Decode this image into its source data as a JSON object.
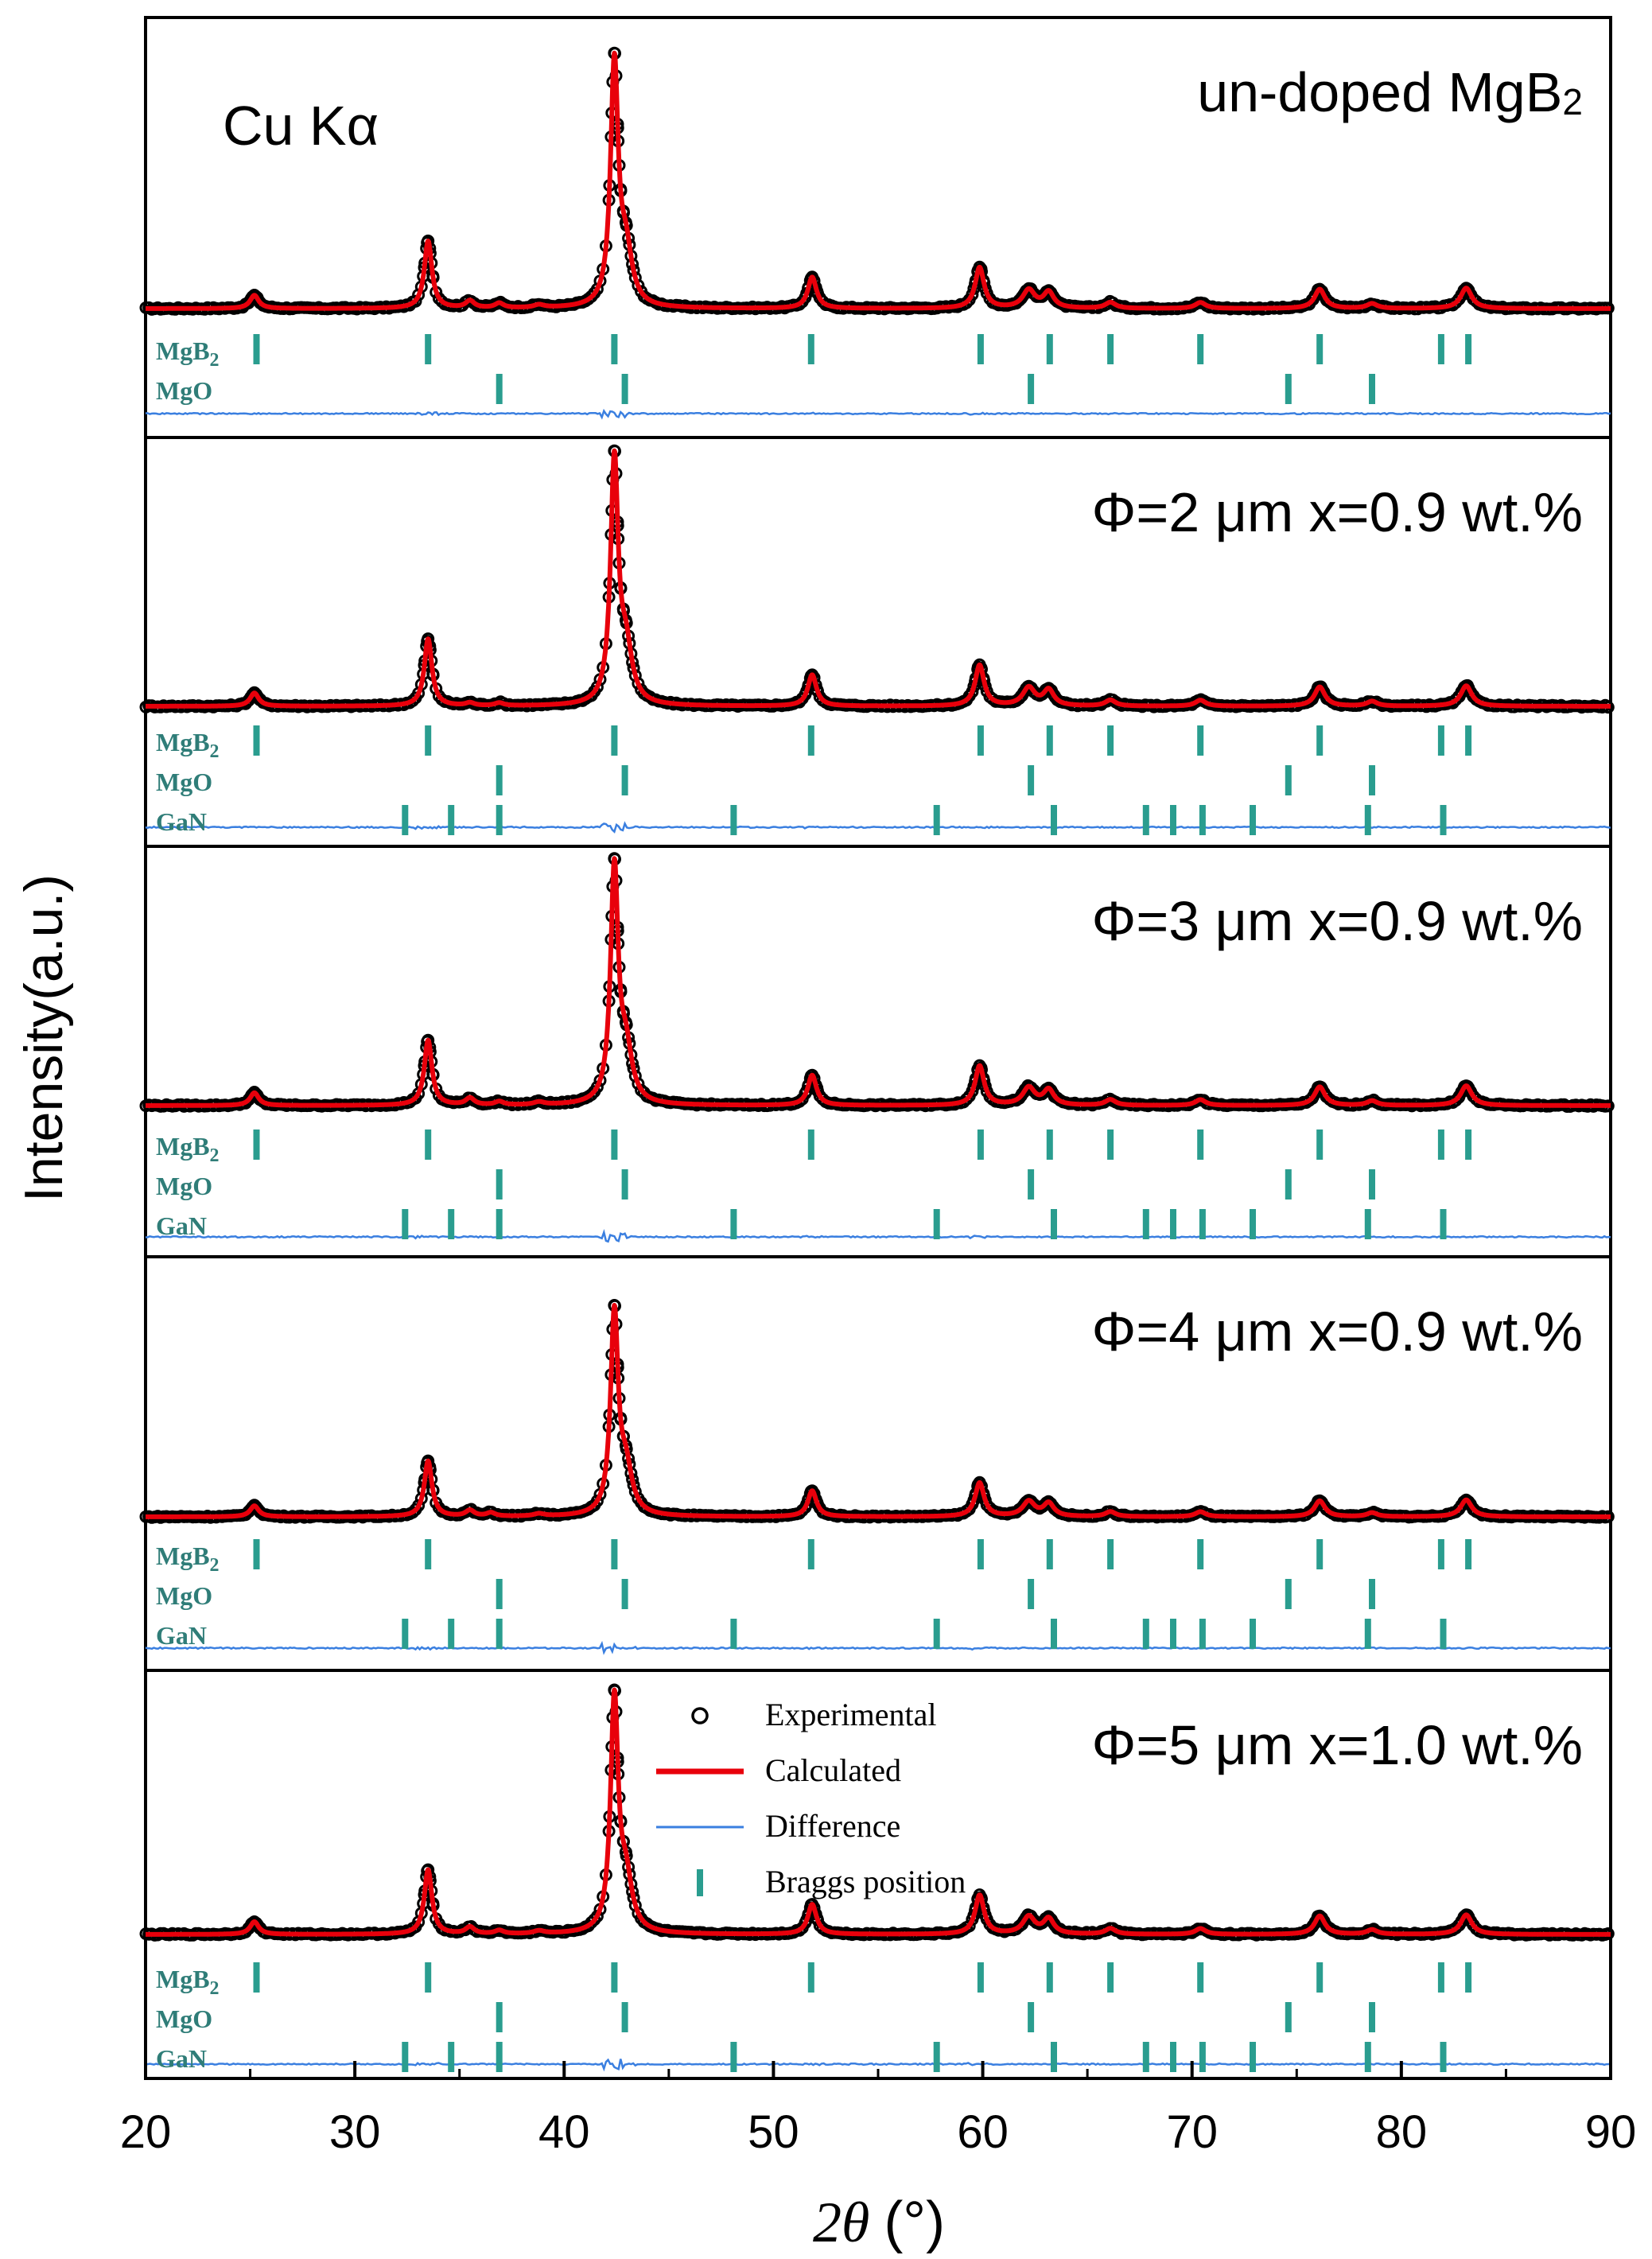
{
  "chart_data": {
    "type": "line",
    "xlabel_symbol": "2θ",
    "xlabel_unit": "(°)",
    "ylabel": "Intensity(a.u.)",
    "xlim": [
      20,
      90
    ],
    "xticks": [
      "20",
      "30",
      "40",
      "50",
      "60",
      "70",
      "80",
      "90"
    ],
    "radiation_label": "Cu Kα",
    "legend": {
      "placement": "inside-bottom-panel",
      "entries": [
        "Experimental",
        "Calculated",
        "Difference",
        "Braggs position"
      ]
    },
    "colors": {
      "experimental": "#000000",
      "calculated": "#e8000b",
      "difference": "#3a7fe0",
      "bragg": "#2a9d8f",
      "phase_label": "#2f7d78"
    },
    "peaks_common": [
      {
        "x": 25.2,
        "h": 5.5,
        "w": 0.25
      },
      {
        "x": 33.5,
        "h": 28,
        "w": 0.22
      },
      {
        "x": 42.4,
        "h": 100,
        "w": 0.22
      },
      {
        "x": 42.95,
        "h": 22,
        "w": 0.35
      },
      {
        "x": 51.85,
        "h": 13,
        "w": 0.25
      },
      {
        "x": 59.85,
        "h": 17,
        "w": 0.26
      },
      {
        "x": 62.2,
        "h": 7.5,
        "w": 0.35
      },
      {
        "x": 63.15,
        "h": 6.5,
        "w": 0.3
      },
      {
        "x": 66.1,
        "h": 2.5,
        "w": 0.3
      },
      {
        "x": 70.4,
        "h": 2.5,
        "w": 0.3
      },
      {
        "x": 76.1,
        "h": 8,
        "w": 0.3
      },
      {
        "x": 78.6,
        "h": 2,
        "w": 0.3
      },
      {
        "x": 83.1,
        "h": 8.5,
        "w": 0.32
      }
    ],
    "panels": [
      {
        "title_main": "un-doped MgB",
        "title_sub": "2",
        "extra_peaks": [
          {
            "x": 35.5,
            "h": 3,
            "w": 0.25
          },
          {
            "x": 36.9,
            "h": 2,
            "w": 0.25
          },
          {
            "x": 38.8,
            "h": 1.2,
            "w": 0.3
          }
        ],
        "phases": [
          {
            "name": "MgB",
            "sub": "2",
            "positions": [
              25.3,
              33.5,
              42.4,
              51.8,
              59.9,
              63.2,
              66.1,
              70.4,
              76.1,
              81.9,
              83.2
            ]
          },
          {
            "name": "MgO",
            "sub": "",
            "positions": [
              36.9,
              42.9,
              62.3,
              74.6,
              78.6
            ]
          }
        ]
      },
      {
        "title_main": "Φ=2 μm  x=0.9 wt.%",
        "title_sub": "",
        "extra_peaks": [
          {
            "x": 35.5,
            "h": 1.2,
            "w": 0.25
          },
          {
            "x": 36.9,
            "h": 1.2,
            "w": 0.25
          }
        ],
        "phases": [
          {
            "name": "MgB",
            "sub": "2",
            "positions": [
              25.3,
              33.5,
              42.4,
              51.8,
              59.9,
              63.2,
              66.1,
              70.4,
              76.1,
              81.9,
              83.2
            ]
          },
          {
            "name": "MgO",
            "sub": "",
            "positions": [
              36.9,
              42.9,
              62.3,
              74.6,
              78.6
            ]
          },
          {
            "name": "GaN",
            "sub": "",
            "positions": [
              32.4,
              34.6,
              36.9,
              48.1,
              57.8,
              63.4,
              67.8,
              69.1,
              70.5,
              72.9,
              78.4,
              82.0
            ]
          }
        ]
      },
      {
        "title_main": "Φ=3 μm  x=0.9 wt.%",
        "title_sub": "",
        "extra_peaks": [
          {
            "x": 35.5,
            "h": 3,
            "w": 0.25
          },
          {
            "x": 36.9,
            "h": 1.5,
            "w": 0.25
          },
          {
            "x": 38.8,
            "h": 1.2,
            "w": 0.3
          }
        ],
        "phases": [
          {
            "name": "MgB",
            "sub": "2",
            "positions": [
              25.3,
              33.5,
              42.4,
              51.8,
              59.9,
              63.2,
              66.1,
              70.4,
              76.1,
              81.9,
              83.2
            ]
          },
          {
            "name": "MgO",
            "sub": "",
            "positions": [
              36.9,
              42.9,
              62.3,
              74.6,
              78.6
            ]
          },
          {
            "name": "GaN",
            "sub": "",
            "positions": [
              32.4,
              34.6,
              36.9,
              48.1,
              57.8,
              63.4,
              67.8,
              69.1,
              70.5,
              72.9,
              78.4,
              82.0
            ]
          }
        ]
      },
      {
        "title_main": "Φ=4 μm  x=0.9 wt.%",
        "title_sub": "",
        "extra_peaks": [
          {
            "x": 35.5,
            "h": 3,
            "w": 0.25
          },
          {
            "x": 36.5,
            "h": 1.8,
            "w": 0.25
          },
          {
            "x": 38.8,
            "h": 1.2,
            "w": 0.3
          }
        ],
        "phases": [
          {
            "name": "MgB",
            "sub": "2",
            "positions": [
              25.3,
              33.5,
              42.4,
              51.8,
              59.9,
              63.2,
              66.1,
              70.4,
              76.1,
              81.9,
              83.2
            ]
          },
          {
            "name": "MgO",
            "sub": "",
            "positions": [
              36.9,
              42.9,
              62.3,
              74.6,
              78.6
            ]
          },
          {
            "name": "GaN",
            "sub": "",
            "positions": [
              32.4,
              34.6,
              36.9,
              48.1,
              57.8,
              63.4,
              67.8,
              69.1,
              70.5,
              72.9,
              78.4,
              82.0
            ]
          }
        ]
      },
      {
        "title_main": "Φ=5 μm  x=1.0 wt.%",
        "title_sub": "",
        "extra_peaks": [
          {
            "x": 35.5,
            "h": 3,
            "w": 0.25
          },
          {
            "x": 36.9,
            "h": 1.5,
            "w": 0.25
          },
          {
            "x": 38.8,
            "h": 1.2,
            "w": 0.3
          }
        ],
        "phases": [
          {
            "name": "MgB",
            "sub": "2",
            "positions": [
              25.3,
              33.5,
              42.4,
              51.8,
              59.9,
              63.2,
              66.1,
              70.4,
              76.1,
              81.9,
              83.2
            ]
          },
          {
            "name": "MgO",
            "sub": "",
            "positions": [
              36.9,
              42.9,
              62.3,
              74.6,
              78.6
            ]
          },
          {
            "name": "GaN",
            "sub": "",
            "positions": [
              32.4,
              34.6,
              36.9,
              48.1,
              57.8,
              63.4,
              67.8,
              69.1,
              70.5,
              72.9,
              78.4,
              82.0
            ]
          }
        ]
      }
    ]
  }
}
